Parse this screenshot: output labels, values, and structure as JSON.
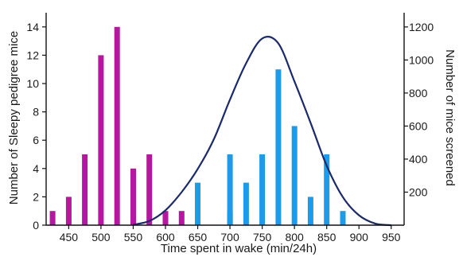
{
  "chart_data": {
    "type": "bar",
    "xlabel": "Time spent in wake (min/24h)",
    "ylabel_left": "Number of Sleepy pedigree mice",
    "ylabel_right": "Number of mice screened",
    "xlim": [
      415,
      970
    ],
    "ylim_left": [
      0,
      15
    ],
    "ylim_right": [
      0,
      1286
    ],
    "xticks": [
      450,
      500,
      550,
      600,
      650,
      700,
      750,
      800,
      850,
      900,
      950
    ],
    "yticks_left": [
      0,
      2,
      4,
      6,
      8,
      10,
      12,
      14
    ],
    "yticks_right": [
      200,
      400,
      600,
      800,
      1000,
      1200
    ],
    "colors": {
      "magenta": "#b5179e",
      "blue": "#1e9be8",
      "line": "#1a2a6c",
      "axis": "#111111"
    },
    "series": [
      {
        "axis": "left",
        "color": "magenta",
        "x": [
          425,
          450,
          475,
          500,
          525,
          550,
          575,
          600,
          625,
          700
        ],
        "values": [
          1,
          2,
          5,
          12,
          14,
          4,
          5,
          1,
          1,
          1
        ]
      },
      {
        "axis": "left",
        "color": "blue",
        "x": [
          650,
          700,
          725,
          750,
          775,
          800,
          825,
          850,
          875
        ],
        "values": [
          3,
          5,
          3,
          5,
          11,
          7,
          2,
          5,
          1
        ]
      },
      {
        "axis": "right",
        "type": "line",
        "color": "line",
        "x": [
          550,
          575,
          600,
          625,
          650,
          675,
          700,
          725,
          750,
          775,
          800,
          825,
          850,
          875,
          900,
          925,
          950
        ],
        "values": [
          3,
          25,
          90,
          200,
          340,
          520,
          760,
          980,
          1130,
          1100,
          870,
          620,
          360,
          170,
          60,
          10,
          0
        ]
      }
    ]
  }
}
